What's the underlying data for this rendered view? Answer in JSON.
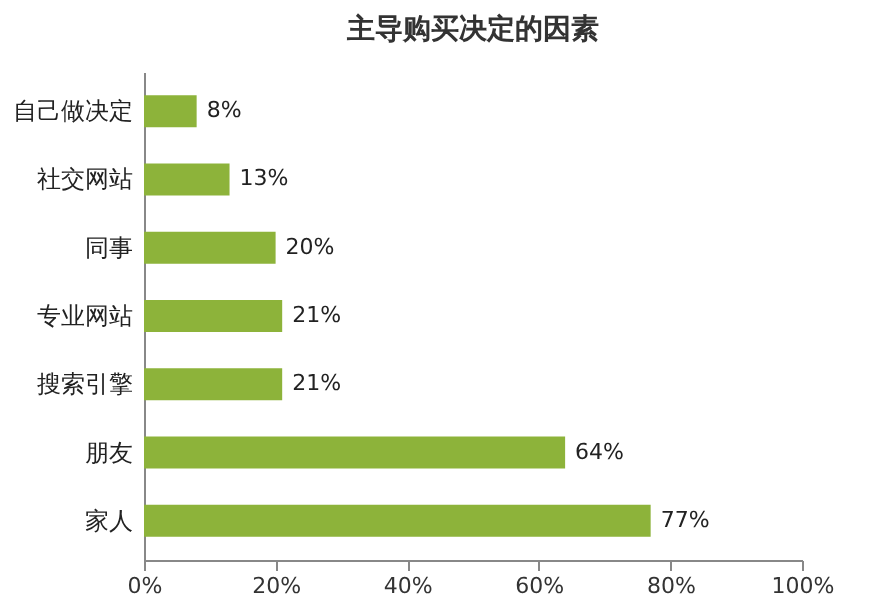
{
  "chart_data": {
    "type": "bar",
    "orientation": "horizontal",
    "title": "主导购买决定的因素",
    "categories": [
      "自己做决定",
      "社交网站",
      "同事",
      "专业网站",
      "搜索引擎",
      "朋友",
      "家人"
    ],
    "values": [
      8,
      13,
      20,
      21,
      21,
      64,
      77
    ],
    "value_labels": [
      "8%",
      "13%",
      "20%",
      "21%",
      "21%",
      "64%",
      "77%"
    ],
    "color": "#8db33a",
    "xlim": [
      0,
      100
    ],
    "xticks": [
      {
        "value": 0,
        "label": "0%"
      },
      {
        "value": 20,
        "label": "20%"
      },
      {
        "value": 40,
        "label": "40%"
      },
      {
        "value": 60,
        "label": "60%"
      },
      {
        "value": 80,
        "label": "80%"
      },
      {
        "value": 100,
        "label": "100%"
      }
    ],
    "grid": false
  }
}
